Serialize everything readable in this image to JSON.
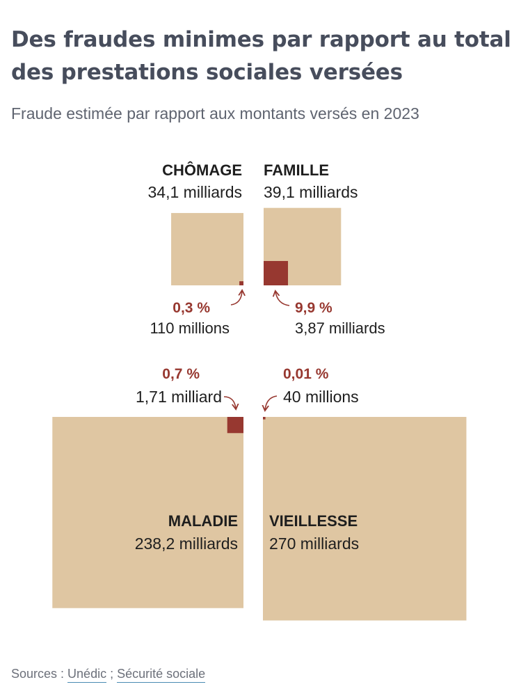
{
  "title": "Des fraudes minimes par rapport au total des prestations sociales versées",
  "subtitle": "Fraude estimée par rapport aux montants versés en 2023",
  "colors": {
    "total": "#dfc6a2",
    "fraud": "#973830",
    "heading": "#474d5c",
    "text": "#1e1e1e"
  },
  "chart_data": {
    "type": "area-proportional squares",
    "unit": "euros",
    "items": [
      {
        "category": "CHÔMAGE",
        "total": 34.1,
        "total_label": "34,1 milliards",
        "fraud": 0.11,
        "fraud_label": "110 millions",
        "fraud_pct": 0.3,
        "fraud_pct_label": "0,3 %"
      },
      {
        "category": "FAMILLE",
        "total": 39.1,
        "total_label": "39,1 milliards",
        "fraud": 3.87,
        "fraud_label": "3,87 milliards",
        "fraud_pct": 9.9,
        "fraud_pct_label": "9,9 %"
      },
      {
        "category": "MALADIE",
        "total": 238.2,
        "total_label": "238,2 milliards",
        "fraud": 1.71,
        "fraud_label": "1,71 milliard",
        "fraud_pct": 0.7,
        "fraud_pct_label": "0,7 %"
      },
      {
        "category": "VIEILLESSE",
        "total": 270,
        "total_label": "270 milliards",
        "fraud": 0.04,
        "fraud_label": "40 millions",
        "fraud_pct": 0.01,
        "fraud_pct_label": "0,01 %"
      }
    ]
  },
  "sources": {
    "prefix": "Sources : ",
    "separator": " ; ",
    "links": [
      "Unédic",
      "Sécurité sociale"
    ]
  }
}
